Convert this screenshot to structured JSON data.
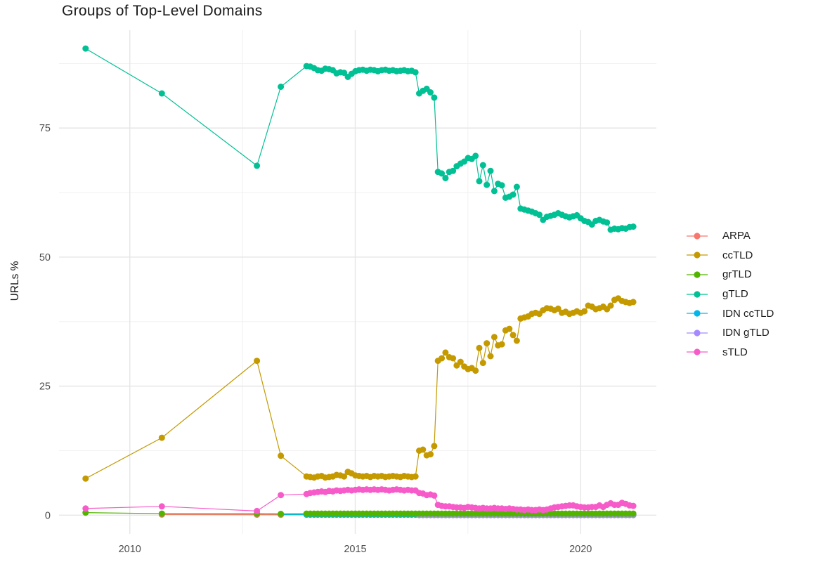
{
  "title": "Groups of Top-Level Domains",
  "chart_data": {
    "type": "line",
    "title": "Groups of Top-Level Domains",
    "xlabel": "",
    "ylabel": "URLs %",
    "grid": true,
    "legend_position": "right",
    "xlim": [
      2008.43,
      2021.68
    ],
    "ylim": [
      -3.63,
      93.95
    ],
    "x_ticks": [
      2010,
      2015,
      2020
    ],
    "x_tick_labels": [
      "2010",
      "2015",
      "2020"
    ],
    "x_minor_ticks": [
      2012.5,
      2017.5
    ],
    "y_ticks": [
      0,
      25,
      50,
      75
    ],
    "y_tick_labels": [
      "0",
      "25",
      "50",
      "75"
    ],
    "y_minor_ticks": [
      12.5,
      37.5,
      62.5,
      87.5
    ],
    "series": [
      {
        "name": "ARPA",
        "color": "#F8766D",
        "early_points": [
          [
            2010.71,
            0.12
          ],
          [
            2012.82,
            0.1
          ],
          [
            2013.35,
            0.08
          ]
        ]
      },
      {
        "name": "ccTLD",
        "color": "#C49A00",
        "early_points": [
          [
            2009.02,
            7.1
          ],
          [
            2010.71,
            15.0
          ],
          [
            2012.82,
            29.9
          ],
          [
            2013.35,
            11.5
          ]
        ],
        "dense": {
          "start": 2013.92,
          "step": 0.0833,
          "values": [
            7.5,
            7.4,
            7.3,
            7.5,
            7.6,
            7.3,
            7.4,
            7.5,
            7.8,
            7.7,
            7.5,
            8.4,
            8.1,
            7.7,
            7.6,
            7.5,
            7.6,
            7.4,
            7.6,
            7.5,
            7.6,
            7.4,
            7.5,
            7.6,
            7.5,
            7.4,
            7.6,
            7.5,
            7.4,
            7.5,
            12.5,
            12.7,
            11.6,
            11.8,
            13.4,
            29.9,
            30.4,
            31.5,
            30.6,
            30.4,
            29.0,
            29.7,
            28.8,
            28.3,
            28.5,
            28.0,
            32.4,
            29.5,
            33.3,
            30.8,
            34.5,
            32.9,
            33.1,
            35.8,
            36.1,
            34.9,
            33.8,
            38.1,
            38.3,
            38.5,
            39.0,
            39.2,
            39.0,
            39.7,
            40.1,
            40.0,
            39.7,
            40.0,
            39.2,
            39.4,
            39.0,
            39.2,
            39.5,
            39.2,
            39.5,
            40.6,
            40.4,
            39.9,
            40.1,
            40.4,
            39.9,
            40.6,
            41.7,
            42.0,
            41.5,
            41.3,
            41.1,
            41.3
          ]
        }
      },
      {
        "name": "grTLD",
        "color": "#53B400",
        "early_points": [
          [
            2009.02,
            0.5
          ],
          [
            2010.71,
            0.3
          ],
          [
            2012.82,
            0.3
          ],
          [
            2013.35,
            0.25
          ]
        ],
        "dense": {
          "start": 2013.92,
          "step": 0.0833,
          "count": 88,
          "value": 0.3
        }
      },
      {
        "name": "gTLD",
        "color": "#00C094",
        "early_points": [
          [
            2009.02,
            90.4
          ],
          [
            2010.71,
            81.7
          ],
          [
            2012.82,
            67.7
          ],
          [
            2013.35,
            83.0
          ]
        ],
        "dense": {
          "start": 2013.92,
          "step": 0.0833,
          "values": [
            87.0,
            86.9,
            86.6,
            86.2,
            86.1,
            86.5,
            86.4,
            86.2,
            85.6,
            85.8,
            85.7,
            84.9,
            85.5,
            86.0,
            86.2,
            86.3,
            86.1,
            86.3,
            86.2,
            86.0,
            86.2,
            86.3,
            86.1,
            86.2,
            86.0,
            86.1,
            86.2,
            86.0,
            86.1,
            85.8,
            81.7,
            82.2,
            82.6,
            81.9,
            80.9,
            66.5,
            66.2,
            65.3,
            66.5,
            66.7,
            67.6,
            68.1,
            68.5,
            69.2,
            69.0,
            69.6,
            64.7,
            67.8,
            64.0,
            66.7,
            62.8,
            64.2,
            63.9,
            61.5,
            61.7,
            62.1,
            63.6,
            59.4,
            59.2,
            59.0,
            58.8,
            58.5,
            58.2,
            57.2,
            57.8,
            58.0,
            58.2,
            58.5,
            58.2,
            57.9,
            57.7,
            57.9,
            58.1,
            57.5,
            57.0,
            56.8,
            56.3,
            57.0,
            57.2,
            56.9,
            56.7,
            55.3,
            55.5,
            55.4,
            55.6,
            55.5,
            55.8,
            55.9
          ]
        }
      },
      {
        "name": "IDN ccTLD",
        "color": "#00B6EB",
        "early_points": [
          [
            2012.82,
            0.15
          ],
          [
            2013.35,
            0.1
          ]
        ],
        "dense": {
          "start": 2013.92,
          "step": 0.0833,
          "count": 88,
          "value": 0.1
        }
      },
      {
        "name": "IDN gTLD",
        "color": "#A58AFF",
        "dense": {
          "start": 2016.42,
          "step": 0.0833,
          "count": 58,
          "value": 0.02
        }
      },
      {
        "name": "sTLD",
        "color": "#F65BC9",
        "early_points": [
          [
            2009.02,
            1.3
          ],
          [
            2010.71,
            1.7
          ],
          [
            2012.82,
            0.8
          ],
          [
            2013.35,
            3.9
          ]
        ],
        "dense": {
          "start": 2013.92,
          "step": 0.0833,
          "values": [
            4.1,
            4.3,
            4.4,
            4.5,
            4.6,
            4.5,
            4.7,
            4.6,
            4.8,
            4.7,
            4.8,
            4.9,
            4.8,
            4.9,
            5.0,
            4.9,
            5.0,
            4.9,
            5.0,
            4.9,
            5.0,
            4.9,
            4.8,
            4.9,
            5.0,
            4.9,
            4.8,
            4.9,
            4.8,
            4.8,
            4.3,
            4.2,
            3.9,
            4.0,
            3.8,
            2.0,
            1.8,
            1.7,
            1.7,
            1.6,
            1.5,
            1.5,
            1.4,
            1.6,
            1.5,
            1.4,
            1.3,
            1.4,
            1.3,
            1.3,
            1.4,
            1.3,
            1.3,
            1.2,
            1.3,
            1.2,
            1.1,
            1.1,
            1.0,
            1.1,
            1.0,
            1.0,
            1.1,
            1.0,
            1.1,
            1.3,
            1.5,
            1.6,
            1.7,
            1.8,
            1.9,
            1.9,
            1.7,
            1.6,
            1.5,
            1.5,
            1.6,
            1.6,
            1.9,
            1.6,
            2.0,
            2.3,
            2.0,
            2.0,
            2.4,
            2.2,
            1.9,
            1.8
          ]
        }
      }
    ],
    "style": {
      "grid_major_color": "#e6e6e6",
      "grid_minor_color": "#efefef",
      "axis_text_color": "#4d4d4d",
      "title_color": "#1a1a1a",
      "background": "#ffffff"
    }
  }
}
